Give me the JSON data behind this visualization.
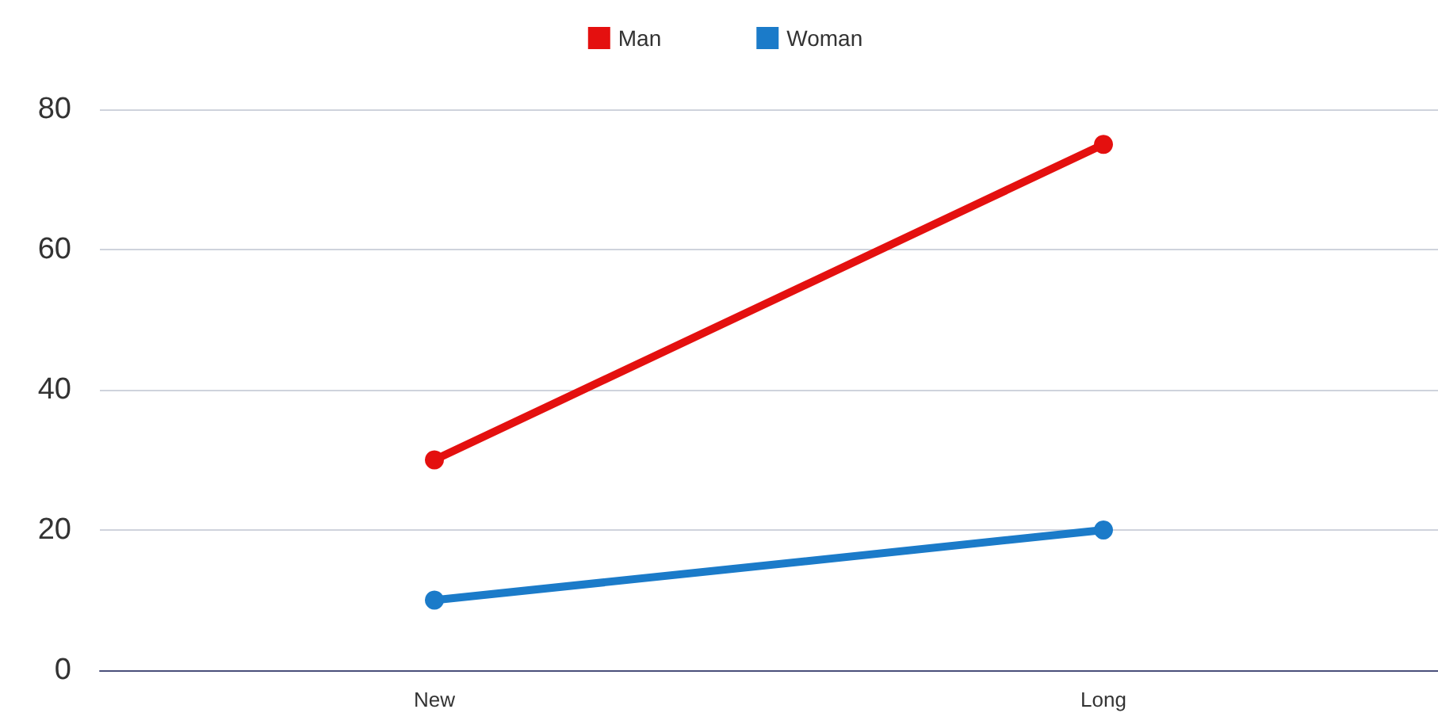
{
  "chart_data": {
    "type": "line",
    "categories": [
      "New",
      "Long"
    ],
    "series": [
      {
        "name": "Man",
        "color": "#e4100f",
        "values": [
          30,
          75
        ]
      },
      {
        "name": "Woman",
        "color": "#1b7bc9",
        "values": [
          10,
          20
        ]
      }
    ],
    "ylim": [
      0,
      80
    ],
    "yticks": [
      0,
      20,
      40,
      60,
      80
    ],
    "grid": "y",
    "legend": "top",
    "marker": "circle",
    "line_style": "solid"
  }
}
